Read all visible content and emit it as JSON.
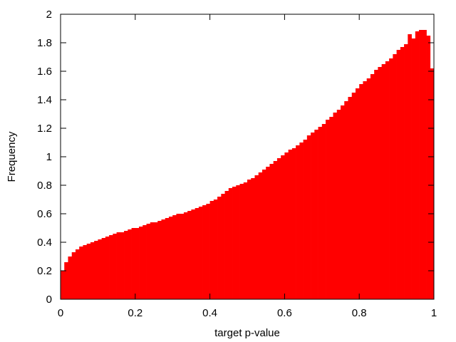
{
  "chart_data": {
    "type": "bar",
    "title": "",
    "xlabel": "target p-value",
    "ylabel": "Frequency",
    "xlim": [
      0,
      1
    ],
    "ylim": [
      0,
      2
    ],
    "xticks": [
      "0",
      "0.2",
      "0.4",
      "0.6",
      "0.8",
      "1"
    ],
    "yticks": [
      "0",
      "0.2",
      "0.4",
      "0.6",
      "0.8",
      "1",
      "1.2",
      "1.4",
      "1.6",
      "1.8",
      "2"
    ],
    "bin_width": 0.01,
    "color": "#ff0000",
    "grid": false,
    "legend": "none",
    "values": [
      0.2,
      0.26,
      0.3,
      0.33,
      0.35,
      0.37,
      0.38,
      0.39,
      0.4,
      0.41,
      0.42,
      0.43,
      0.44,
      0.45,
      0.46,
      0.47,
      0.47,
      0.48,
      0.49,
      0.5,
      0.5,
      0.51,
      0.52,
      0.53,
      0.54,
      0.54,
      0.55,
      0.56,
      0.57,
      0.58,
      0.59,
      0.6,
      0.6,
      0.61,
      0.62,
      0.63,
      0.64,
      0.65,
      0.66,
      0.67,
      0.69,
      0.7,
      0.72,
      0.74,
      0.76,
      0.78,
      0.79,
      0.8,
      0.81,
      0.82,
      0.84,
      0.85,
      0.87,
      0.89,
      0.91,
      0.93,
      0.95,
      0.97,
      0.99,
      1.01,
      1.03,
      1.05,
      1.06,
      1.08,
      1.1,
      1.12,
      1.15,
      1.17,
      1.19,
      1.21,
      1.23,
      1.26,
      1.28,
      1.31,
      1.33,
      1.36,
      1.39,
      1.42,
      1.45,
      1.48,
      1.51,
      1.53,
      1.55,
      1.58,
      1.61,
      1.63,
      1.65,
      1.67,
      1.69,
      1.72,
      1.75,
      1.77,
      1.79,
      1.86,
      1.83,
      1.88,
      1.89,
      1.89,
      1.85,
      1.62
    ]
  }
}
